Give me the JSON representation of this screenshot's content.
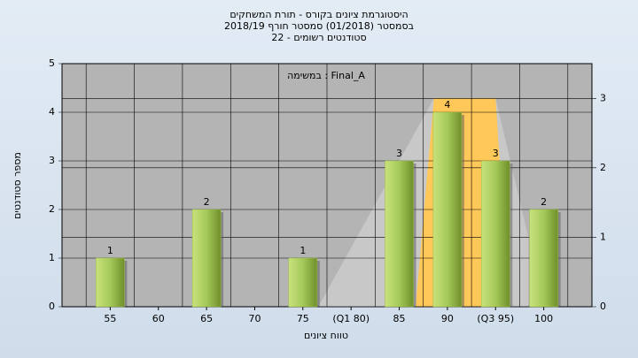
{
  "chart_data": {
    "type": "bar",
    "title": [
      "היסטוגרמת ציונים בקורס - תורת המשחקים",
      "בסמסטר  (01/2018)  סמסטר חורף 2018/19",
      "סטודנטים רשומים - 22"
    ],
    "annotation": "במשימה : Final_A",
    "x_label": "טווח ציונים",
    "y_label": "מספר סטודנטים",
    "categories": [
      "55",
      "60",
      "65",
      "70",
      "75",
      "(Q1 80)",
      "85",
      "90",
      "(Q3 95)",
      "100"
    ],
    "values": [
      1,
      0,
      2,
      0,
      1,
      0,
      3,
      4,
      3,
      2
    ],
    "color": "#9bbb45",
    "ylim": [
      0,
      5
    ],
    "yticks": [
      0,
      1,
      2,
      3,
      4,
      5
    ],
    "y2lim": [
      0,
      3.5
    ],
    "y2ticks": [
      0,
      1,
      2,
      3
    ],
    "xlim": [
      50,
      105
    ],
    "grid": true,
    "areas": [
      {
        "color": "#c8c8c8",
        "axis": "y2",
        "x": [
          76.6,
          88.6,
          95,
          98.4
        ],
        "values": [
          0,
          3,
          3,
          1
        ]
      },
      {
        "color": "#ffc859",
        "axis": "y2",
        "x": [
          86.7,
          88.6,
          95,
          96.4
        ],
        "values": [
          0,
          3,
          3,
          0
        ]
      }
    ]
  }
}
